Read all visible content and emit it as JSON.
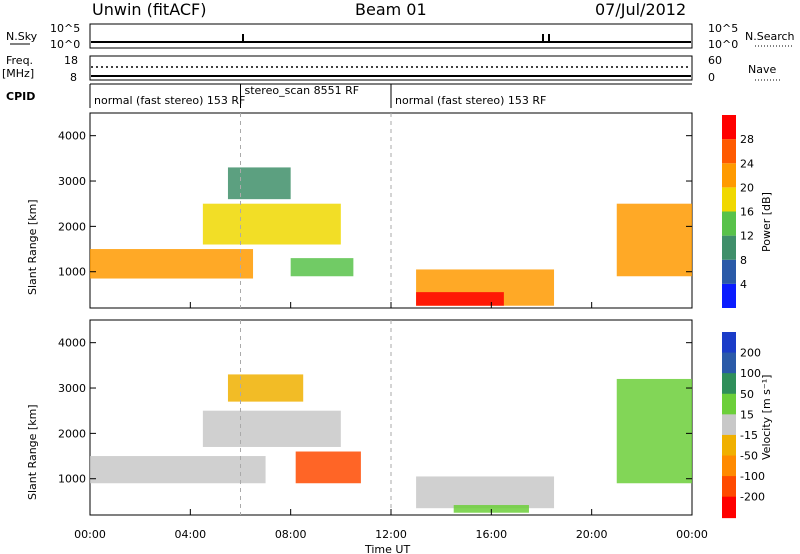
{
  "header": {
    "station": "Unwin (fitACF)",
    "beam": "Beam 01",
    "date": "07/Jul/2012"
  },
  "strip_labels": {
    "nsky": "N.Sky",
    "nsearch": "N.Search",
    "freq": "Freq.",
    "freq_unit": "[MHz]",
    "nave": "Nave",
    "cpid": "CPID",
    "nsky_ticks": [
      "10^5",
      "10^0"
    ],
    "nsearch_ticks": [
      "10^5",
      "10^0"
    ],
    "freq_ticks": [
      "18",
      "8"
    ],
    "nave_ticks": [
      "60",
      "0"
    ]
  },
  "cpid_segments": [
    {
      "label": "normal (fast stereo) 153 RF",
      "start": 0,
      "end": 6.0
    },
    {
      "label": "stereo_scan 8551 RF",
      "start": 6.0,
      "end": 12.0
    },
    {
      "label": "normal (fast stereo) 153 RF",
      "start": 12.0,
      "end": 24.0
    }
  ],
  "axes": {
    "x_label": "Time UT",
    "x_ticks": [
      "00:00",
      "04:00",
      "08:00",
      "12:00",
      "16:00",
      "20:00",
      "00:00"
    ],
    "y_label": "Slant Range [km]",
    "y_ticks": [
      "1000",
      "2000",
      "3000",
      "4000"
    ]
  },
  "colorbars": {
    "power": {
      "label": "Power [dB]",
      "ticks": [
        "4",
        "8",
        "12",
        "16",
        "20",
        "24",
        "28"
      ],
      "colors": [
        "#0a1cff",
        "#2a5aa8",
        "#3f8f6a",
        "#58c24a",
        "#f0d800",
        "#ff9a00",
        "#ff5a00",
        "#ff0000"
      ]
    },
    "velocity": {
      "label": "Velocity [m s⁻¹]",
      "ticks": [
        "200",
        "100",
        "50",
        "15",
        "-15",
        "-50",
        "-100",
        "-200"
      ],
      "colors": [
        "#1a3cc8",
        "#2a5aa8",
        "#2f8f5a",
        "#6ccf3a",
        "#c8c8c8",
        "#f0b000",
        "#ff8a00",
        "#ff4a00",
        "#ff0000"
      ]
    }
  },
  "chart_data": [
    {
      "type": "heatmap",
      "title": "Power",
      "x_unit": "hours UT",
      "y_unit": "km",
      "xlim": [
        0,
        24
      ],
      "ylim": [
        200,
        4500
      ],
      "zlim": [
        0,
        30
      ],
      "dashed_vlines": [
        6.0,
        12.0
      ],
      "regions": [
        {
          "x": [
            0.0,
            6.5
          ],
          "y": [
            850,
            1500
          ],
          "value": 22
        },
        {
          "x": [
            4.5,
            10.0
          ],
          "y": [
            1600,
            2500
          ],
          "value": 18
        },
        {
          "x": [
            5.5,
            8.0
          ],
          "y": [
            2600,
            3300
          ],
          "value": 10
        },
        {
          "x": [
            8.0,
            10.5
          ],
          "y": [
            900,
            1300
          ],
          "value": 12
        },
        {
          "x": [
            13.0,
            18.5
          ],
          "y": [
            250,
            1050
          ],
          "value": 20
        },
        {
          "x": [
            13.0,
            16.5
          ],
          "y": [
            250,
            550
          ],
          "value": 28
        },
        {
          "x": [
            21.0,
            24.0
          ],
          "y": [
            900,
            2500
          ],
          "value": 22
        }
      ]
    },
    {
      "type": "heatmap",
      "title": "Velocity",
      "x_unit": "hours UT",
      "y_unit": "km",
      "xlim": [
        0,
        24
      ],
      "ylim": [
        200,
        4500
      ],
      "zlim": [
        -250,
        250
      ],
      "dashed_vlines": [
        6.0,
        12.0
      ],
      "regions": [
        {
          "x": [
            0.0,
            7.0
          ],
          "y": [
            900,
            1500
          ],
          "value": 0
        },
        {
          "x": [
            4.5,
            10.0
          ],
          "y": [
            1700,
            2500
          ],
          "value": 0
        },
        {
          "x": [
            5.5,
            8.5
          ],
          "y": [
            2700,
            3300
          ],
          "value": -20
        },
        {
          "x": [
            8.2,
            10.8
          ],
          "y": [
            900,
            1600
          ],
          "value": -120
        },
        {
          "x": [
            13.0,
            18.5
          ],
          "y": [
            350,
            1050
          ],
          "value": 0
        },
        {
          "x": [
            14.5,
            17.5
          ],
          "y": [
            250,
            420
          ],
          "value": 30
        },
        {
          "x": [
            21.0,
            24.0
          ],
          "y": [
            900,
            3200
          ],
          "value": 30
        }
      ]
    }
  ]
}
